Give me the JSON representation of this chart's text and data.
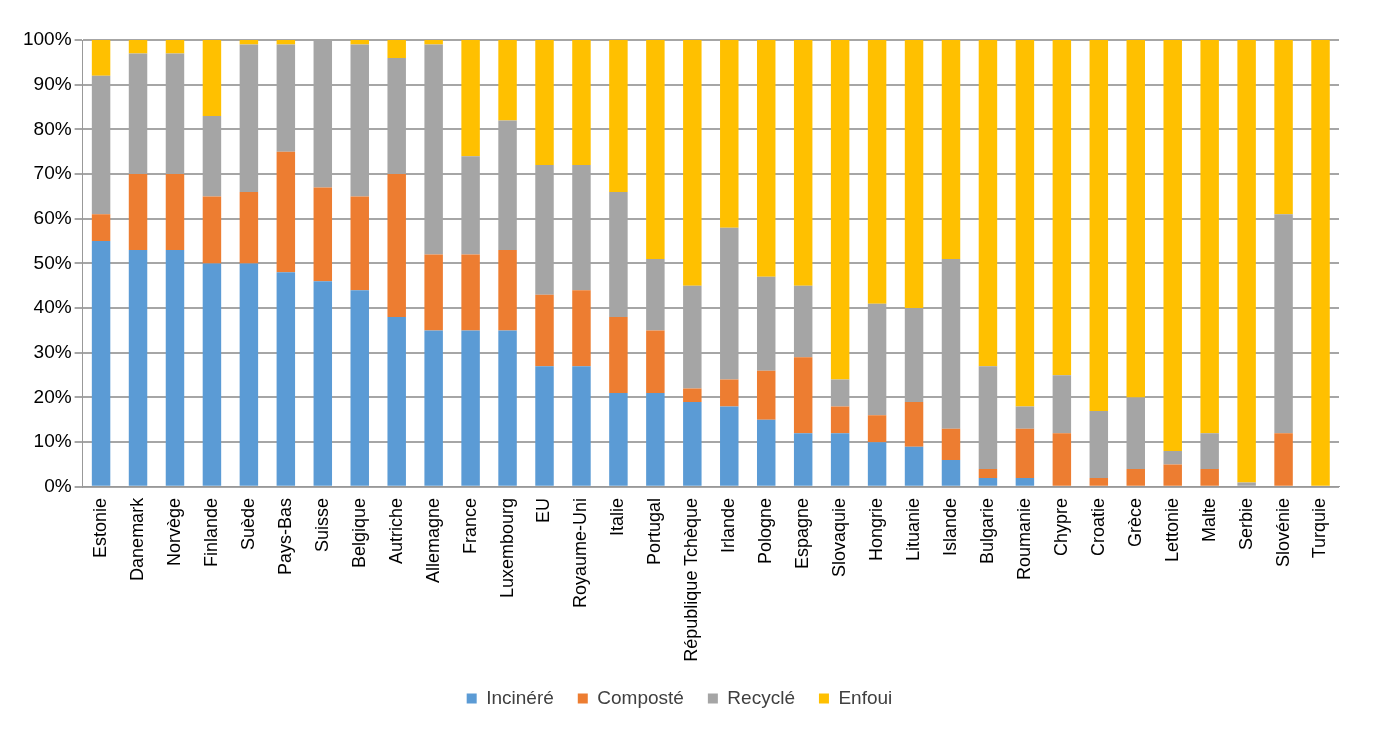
{
  "chart_data": {
    "type": "bar",
    "stacked": true,
    "categories": [
      "Estonie",
      "Danemark",
      "Norvège",
      "Finlande",
      "Suède",
      "Pays-Bas",
      "Suisse",
      "Belgique",
      "Autriche",
      "Allemagne",
      "France",
      "Luxembourg",
      "EU",
      "Royaume-Uni",
      "Italie",
      "Portugal",
      "République Tchèque",
      "Irlande",
      "Pologne",
      "Espagne",
      "Slovaquie",
      "Hongrie",
      "Lituanie",
      "Islande",
      "Bulgarie",
      "Roumanie",
      "Chypre",
      "Croatie",
      "Grèce",
      "Lettonie",
      "Malte",
      "Serbie",
      "Slovénie",
      "Turquie"
    ],
    "series": [
      {
        "name": "Incinéré",
        "color": "#5b9bd5",
        "values": [
          55,
          53,
          53,
          50,
          50,
          48,
          46,
          44,
          38,
          35,
          35,
          35,
          27,
          27,
          21,
          21,
          19,
          18,
          15,
          12,
          12,
          10,
          9,
          6,
          2,
          2,
          0,
          0,
          0,
          0,
          0,
          0,
          0,
          0
        ]
      },
      {
        "name": "Composté",
        "color": "#ed7d31",
        "values": [
          6,
          17,
          17,
          15,
          16,
          27,
          21,
          21,
          32,
          17,
          17,
          18,
          16,
          17,
          17,
          14,
          3,
          6,
          11,
          17,
          6,
          6,
          10,
          7,
          2,
          11,
          12,
          2,
          4,
          5,
          4,
          0,
          12,
          0
        ]
      },
      {
        "name": "Recyclé",
        "color": "#a5a5a5",
        "values": [
          31,
          27,
          27,
          18,
          33,
          24,
          33,
          34,
          26,
          47,
          22,
          29,
          29,
          28,
          28,
          16,
          23,
          34,
          21,
          16,
          6,
          25,
          21,
          38,
          23,
          5,
          13,
          15,
          16,
          3,
          8,
          1,
          49,
          0
        ]
      },
      {
        "name": "Enfoui",
        "color": "#ffc000",
        "values": [
          8,
          3,
          3,
          17,
          1,
          1,
          0,
          1,
          4,
          1,
          26,
          18,
          28,
          28,
          34,
          49,
          55,
          42,
          53,
          55,
          76,
          59,
          60,
          49,
          73,
          82,
          75,
          83,
          80,
          92,
          88,
          99,
          39,
          100
        ]
      }
    ],
    "ylim": [
      0,
      100
    ],
    "yticks": [
      {
        "value": 0,
        "label": "0%"
      },
      {
        "value": 10,
        "label": "10%"
      },
      {
        "value": 20,
        "label": "20%"
      },
      {
        "value": 30,
        "label": "30%"
      },
      {
        "value": 40,
        "label": "40%"
      },
      {
        "value": 50,
        "label": "50%"
      },
      {
        "value": 60,
        "label": "60%"
      },
      {
        "value": 70,
        "label": "70%"
      },
      {
        "value": 80,
        "label": "80%"
      },
      {
        "value": 90,
        "label": "90%"
      },
      {
        "value": 100,
        "label": "100%"
      }
    ],
    "grid": "y",
    "legend": "bottom"
  }
}
